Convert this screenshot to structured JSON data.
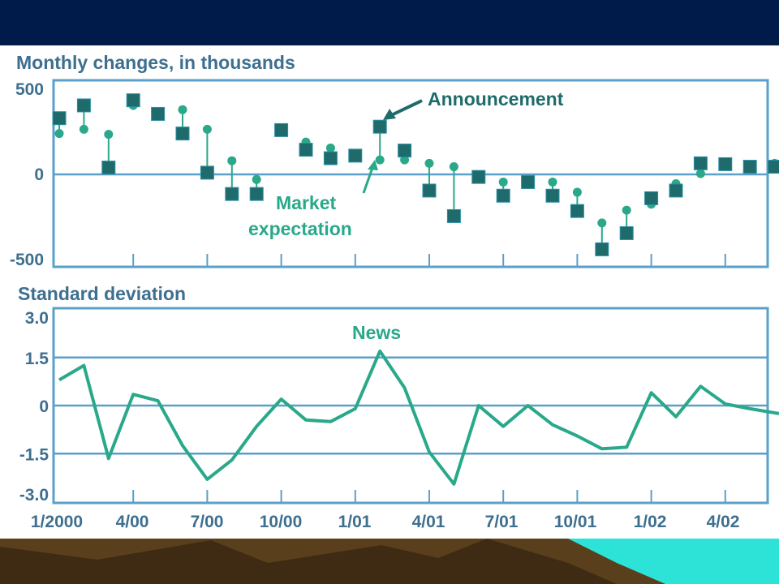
{
  "colors": {
    "header_bar": "#001a4a",
    "page_background": "#ffffff",
    "plot_frame": "#5aa0c8",
    "text": "#3e6f8f",
    "announcement": "#1f6b6b",
    "expectation": "#2aa88a",
    "news_line": "#2aa88a",
    "footer_brown": "#5a3f1c",
    "footer_dark": "#2a1c0c",
    "footer_cyan": "#2de3d8"
  },
  "chart_data": [
    {
      "type": "scatter",
      "title": "Monthly changes, in thousands",
      "ylim": [
        -500,
        500
      ],
      "yticks": [
        "500",
        "0",
        "-500"
      ],
      "x": [
        "1/00",
        "2/00",
        "3/00",
        "4/00",
        "5/00",
        "6/00",
        "7/00",
        "8/00",
        "9/00",
        "10/00",
        "11/00",
        "12/00",
        "1/01",
        "2/01",
        "3/01",
        "4/01",
        "5/01",
        "6/01",
        "7/01",
        "8/01",
        "9/01",
        "10/01",
        "11/01",
        "12/01",
        "1/02",
        "2/02",
        "3/02",
        "4/02",
        "5/02",
        "6/02"
      ],
      "series": [
        {
          "name": "Announcement",
          "marker": "square",
          "values": [
            330,
            405,
            40,
            435,
            355,
            240,
            10,
            -115,
            -115,
            260,
            145,
            95,
            110,
            280,
            140,
            -95,
            -245,
            -15,
            -125,
            -45,
            -125,
            -215,
            -440,
            -345,
            -140,
            -95,
            65,
            60,
            45,
            45
          ]
        },
        {
          "name": "Market expectation",
          "marker": "circle",
          "values": [
            240,
            265,
            235,
            405,
            360,
            380,
            265,
            80,
            -30,
            250,
            190,
            155,
            120,
            85,
            85,
            65,
            45,
            -25,
            -45,
            -45,
            -45,
            -105,
            -285,
            -210,
            -175,
            -55,
            5,
            55,
            40,
            65
          ]
        }
      ],
      "annotations": [
        {
          "text": "Announcement",
          "target_x": "2/01"
        },
        {
          "text_lines": [
            "Market",
            "expectation"
          ],
          "target_x": "2/01"
        }
      ]
    },
    {
      "type": "line",
      "title": "Standard deviation",
      "ylim": [
        -3.0,
        3.0
      ],
      "yticks": [
        "3.0",
        "1.5",
        "0",
        "-1.5",
        "-3.0"
      ],
      "xtick_labels": [
        "1/2000",
        "4/00",
        "7/00",
        "10/00",
        "1/01",
        "4/01",
        "7/01",
        "10/01",
        "1/02",
        "4/02"
      ],
      "series": [
        {
          "name": "News",
          "x": [
            0,
            1,
            2,
            3,
            4,
            5,
            6,
            7,
            8,
            9,
            10,
            11,
            12,
            13,
            14,
            15,
            16,
            17,
            18,
            19,
            20,
            21,
            22,
            23,
            24,
            25,
            26,
            27,
            28,
            29.6
          ],
          "values": [
            0.8,
            1.25,
            -1.65,
            0.35,
            0.15,
            -1.25,
            -2.3,
            -1.7,
            -0.65,
            0.2,
            -0.45,
            -0.5,
            -0.1,
            1.7,
            0.55,
            -1.45,
            -2.45,
            0.0,
            -0.65,
            0.0,
            -0.6,
            -0.95,
            -1.35,
            -1.3,
            0.4,
            -0.35,
            0.6,
            0.05,
            -0.1,
            -0.25
          ]
        }
      ]
    }
  ]
}
